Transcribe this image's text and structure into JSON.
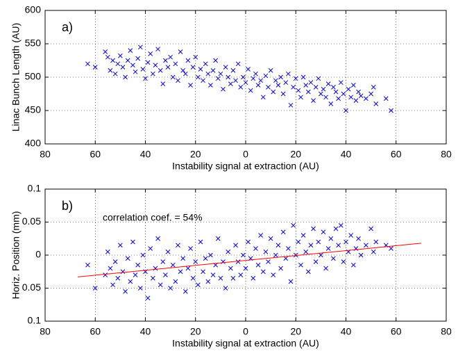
{
  "chart_data": [
    {
      "type": "scatter",
      "panel_label": "a)",
      "xlabel": "Instability signal at extraction (AU)",
      "ylabel": "Linac Bunch Length (AU)",
      "xlim": [
        -80,
        80
      ],
      "ylim": [
        400,
        600
      ],
      "xticks": [
        {
          "value": -80,
          "label": "80"
        },
        {
          "value": -60,
          "label": "60"
        },
        {
          "value": -40,
          "label": "40"
        },
        {
          "value": -20,
          "label": "20"
        },
        0,
        20,
        40,
        60,
        80
      ],
      "yticks": [
        400,
        450,
        500,
        550,
        600
      ],
      "grid": true,
      "series": [
        {
          "color": "#0000ff",
          "style": "x",
          "x": [
            -63,
            -60,
            -56,
            -55,
            -54,
            -53,
            -52,
            -51,
            -50,
            -49,
            -48,
            -47,
            -46,
            -45,
            -44,
            -43,
            -42,
            -41,
            -40,
            -39,
            -38,
            -37,
            -36,
            -35,
            -34,
            -33,
            -32,
            -31,
            -30,
            -29,
            -28,
            -27,
            -26,
            -25,
            -24,
            -23,
            -22,
            -21,
            -20,
            -19,
            -18,
            -17,
            -16,
            -15,
            -14,
            -13,
            -12,
            -11,
            -10,
            -9,
            -8,
            -7,
            -6,
            -5,
            -4,
            -3,
            -2,
            -1,
            0,
            1,
            2,
            3,
            4,
            5,
            6,
            7,
            8,
            9,
            10,
            11,
            12,
            13,
            14,
            15,
            16,
            17,
            18,
            19,
            20,
            21,
            22,
            23,
            24,
            25,
            26,
            27,
            28,
            29,
            30,
            31,
            32,
            33,
            34,
            35,
            36,
            37,
            38,
            39,
            40,
            41,
            42,
            43,
            44,
            45,
            46,
            48,
            50,
            51,
            52,
            56,
            58
          ],
          "values": [
            520,
            515,
            538,
            530,
            510,
            525,
            505,
            520,
            532,
            515,
            500,
            525,
            540,
            518,
            508,
            528,
            545,
            512,
            498,
            522,
            535,
            505,
            518,
            542,
            510,
            490,
            525,
            515,
            530,
            500,
            520,
            495,
            538,
            510,
            505,
            525,
            488,
            515,
            530,
            500,
            512,
            495,
            520,
            505,
            488,
            510,
            525,
            498,
            505,
            482,
            515,
            500,
            490,
            510,
            495,
            520,
            485,
            500,
            492,
            512,
            480,
            498,
            505,
            488,
            495,
            470,
            502,
            485,
            510,
            478,
            495,
            488,
            500,
            475,
            492,
            505,
            458,
            485,
            498,
            480,
            470,
            500,
            488,
            478,
            492,
            465,
            485,
            498,
            475,
            482,
            470,
            490,
            460,
            485,
            478,
            468,
            492,
            475,
            450,
            482,
            470,
            488,
            465,
            478,
            472,
            468,
            475,
            485,
            460,
            468,
            450
          ]
        }
      ]
    },
    {
      "type": "scatter",
      "panel_label": "b)",
      "xlabel": "Instability signal at extraction (AU)",
      "ylabel": "Horiz. Position (mm)",
      "annotation": "correlation coef. = 54%",
      "xlim": [
        -80,
        80
      ],
      "ylim": [
        -0.1,
        0.1
      ],
      "xticks": [
        {
          "value": -80,
          "label": "80"
        },
        {
          "value": -60,
          "label": "60"
        },
        {
          "value": -40,
          "label": "40"
        },
        {
          "value": -20,
          "label": "20"
        },
        0,
        20,
        40,
        60,
        80
      ],
      "yticks": [
        {
          "value": -0.1,
          "label": "0.1"
        },
        {
          "value": -0.05,
          "label": "0.05"
        },
        0,
        0.05,
        0.1
      ],
      "grid": true,
      "series": [
        {
          "color": "#0000ff",
          "style": "x",
          "x": [
            -63,
            -60,
            -56,
            -55,
            -54,
            -53,
            -52,
            -51,
            -50,
            -49,
            -48,
            -47,
            -46,
            -45,
            -44,
            -43,
            -42,
            -41,
            -40,
            -39,
            -38,
            -37,
            -36,
            -35,
            -34,
            -33,
            -32,
            -31,
            -30,
            -29,
            -28,
            -27,
            -26,
            -25,
            -24,
            -23,
            -22,
            -21,
            -20,
            -19,
            -18,
            -17,
            -16,
            -15,
            -14,
            -13,
            -12,
            -11,
            -10,
            -9,
            -8,
            -7,
            -6,
            -5,
            -4,
            -3,
            -2,
            -1,
            0,
            1,
            2,
            3,
            4,
            5,
            6,
            7,
            8,
            9,
            10,
            11,
            12,
            13,
            14,
            15,
            16,
            17,
            18,
            19,
            20,
            21,
            22,
            23,
            24,
            25,
            26,
            27,
            28,
            29,
            30,
            31,
            32,
            33,
            34,
            35,
            36,
            37,
            38,
            39,
            40,
            41,
            42,
            43,
            44,
            45,
            46,
            48,
            50,
            51,
            52,
            56,
            58
          ],
          "values": [
            -0.015,
            -0.05,
            -0.03,
            0.005,
            -0.02,
            -0.045,
            -0.01,
            -0.035,
            0.015,
            -0.025,
            -0.055,
            -0.005,
            -0.04,
            0.02,
            -0.03,
            -0.015,
            -0.05,
            0.0,
            -0.025,
            -0.065,
            0.01,
            -0.035,
            -0.02,
            0.025,
            -0.045,
            -0.01,
            -0.03,
            0.005,
            -0.05,
            -0.015,
            -0.04,
            0.015,
            -0.025,
            -0.005,
            -0.055,
            -0.02,
            0.01,
            -0.035,
            -0.01,
            -0.045,
            0.02,
            -0.025,
            -0.005,
            -0.04,
            0.0,
            -0.03,
            -0.015,
            0.025,
            -0.035,
            -0.01,
            -0.05,
            0.005,
            -0.02,
            -0.035,
            0.015,
            -0.01,
            -0.03,
            0.0,
            -0.02,
            0.02,
            -0.005,
            -0.035,
            0.01,
            -0.015,
            0.03,
            -0.025,
            0.005,
            -0.01,
            0.025,
            -0.03,
            0.0,
            0.015,
            -0.02,
            0.035,
            -0.005,
            0.01,
            -0.04,
            0.045,
            0.0,
            0.02,
            -0.015,
            0.03,
            0.005,
            -0.025,
            0.015,
            0.04,
            -0.01,
            0.02,
            0.0,
            0.035,
            -0.02,
            0.01,
            0.025,
            -0.005,
            0.04,
            0.015,
            0.045,
            -0.01,
            0.02,
            0.005,
            0.03,
            -0.015,
            0.01,
            0.025,
            0.0,
            0.015,
            0.04,
            0.005,
            0.02,
            0.015,
            0.01
          ]
        },
        {
          "color": "#ff0000",
          "style": "line",
          "x": [
            -67,
            70
          ],
          "values": [
            -0.033,
            0.018
          ]
        }
      ]
    }
  ]
}
